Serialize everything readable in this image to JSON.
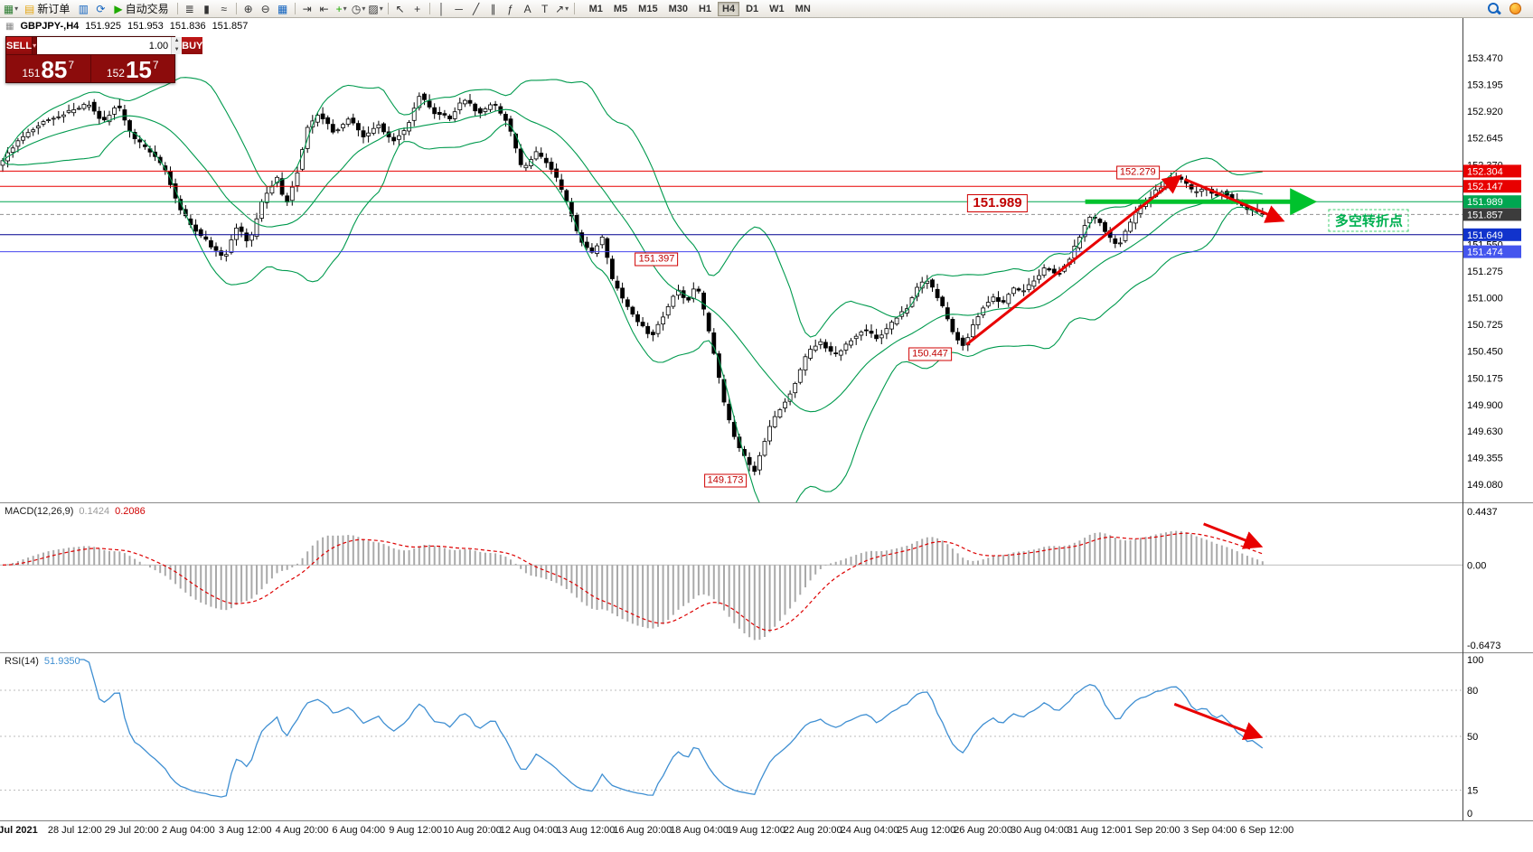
{
  "glyphs": {
    "caret": "▾",
    "spin_up": "▲",
    "spin_down": "▼",
    "chart_icon": "▦"
  },
  "toolbar": {
    "items": [
      {
        "type": "icon",
        "name": "new-chart-icon",
        "glyph": "▦",
        "color": "#2e7d32",
        "caret": true
      },
      {
        "type": "button",
        "name": "new-order-button",
        "glyph": "▤",
        "glyph_color": "#e6a817",
        "label": "新订单"
      },
      {
        "type": "icon",
        "name": "market-watch-icon",
        "glyph": "▥",
        "color": "#1565c0"
      },
      {
        "type": "icon",
        "name": "refresh-icon",
        "glyph": "⟳",
        "color": "#1565c0"
      },
      {
        "type": "button",
        "name": "autotrading-button",
        "glyph": "▶",
        "glyph_color": "#1faa00",
        "label": "自动交易"
      },
      {
        "type": "sep"
      },
      {
        "type": "icon",
        "name": "bar-chart-icon",
        "glyph": "≣",
        "color": "#333333"
      },
      {
        "type": "icon",
        "name": "candlestick-chart-icon",
        "glyph": "▮",
        "color": "#333333"
      },
      {
        "type": "icon",
        "name": "line-chart-icon",
        "glyph": "≈",
        "color": "#333333"
      },
      {
        "type": "sep"
      },
      {
        "type": "icon",
        "name": "zoom-in-icon",
        "glyph": "⊕",
        "color": "#333333"
      },
      {
        "type": "icon",
        "name": "zoom-out-icon",
        "glyph": "⊖",
        "color": "#333333"
      },
      {
        "type": "icon",
        "name": "tile-windows-icon",
        "glyph": "▦",
        "color": "#1565c0"
      },
      {
        "type": "sep"
      },
      {
        "type": "icon",
        "name": "auto-scroll-icon",
        "glyph": "⇥",
        "color": "#333333"
      },
      {
        "type": "icon",
        "name": "chart-shift-icon",
        "glyph": "⇤",
        "color": "#333333"
      },
      {
        "type": "icon",
        "name": "indicators-icon",
        "glyph": "+",
        "color": "#1faa00",
        "caret": true
      },
      {
        "type": "icon",
        "name": "periods-icon",
        "glyph": "◷",
        "color": "#333333",
        "caret": true
      },
      {
        "type": "icon",
        "name": "templates-icon",
        "glyph": "▨",
        "color": "#333333",
        "caret": true
      },
      {
        "type": "sep"
      },
      {
        "type": "icon",
        "name": "cursor-icon",
        "glyph": "↖",
        "color": "#333333"
      },
      {
        "type": "icon",
        "name": "crosshair-icon",
        "glyph": "+",
        "color": "#333333"
      },
      {
        "type": "sep"
      },
      {
        "type": "icon",
        "name": "vertical-line-icon",
        "glyph": "│",
        "color": "#333333"
      },
      {
        "type": "icon",
        "name": "horizontal-line-icon",
        "glyph": "─",
        "color": "#333333"
      },
      {
        "type": "icon",
        "name": "trendline-icon",
        "glyph": "╱",
        "color": "#333333"
      },
      {
        "type": "icon",
        "name": "channel-icon",
        "glyph": "∥",
        "color": "#333333"
      },
      {
        "type": "icon",
        "name": "fibonacci-icon",
        "glyph": "ƒ",
        "color": "#333333"
      },
      {
        "type": "icon",
        "name": "text-icon",
        "glyph": "A",
        "color": "#333333"
      },
      {
        "type": "icon",
        "name": "label-icon",
        "glyph": "T",
        "color": "#333333"
      },
      {
        "type": "icon",
        "name": "arrows-icon",
        "glyph": "↗",
        "color": "#333333",
        "caret": true
      },
      {
        "type": "sep"
      }
    ],
    "timeframes": [
      {
        "label": "M1"
      },
      {
        "label": "M5"
      },
      {
        "label": "M15"
      },
      {
        "label": "M30"
      },
      {
        "label": "H1"
      },
      {
        "label": "H4",
        "active": true
      },
      {
        "label": "D1"
      },
      {
        "label": "W1"
      },
      {
        "label": "MN"
      }
    ]
  },
  "chart": {
    "symbol_period": "GBPJPY-,H4",
    "open": "151.925",
    "high": "151.953",
    "low": "151.836",
    "close": "151.857"
  },
  "trade_panel": {
    "sell_label": "SELL",
    "buy_label": "BUY",
    "volume": "1.00",
    "bid": {
      "prefix": "151",
      "big": "85",
      "sup": "7"
    },
    "ask": {
      "prefix": "152",
      "big": "15",
      "sup": "7"
    }
  },
  "macd": {
    "title": "MACD(12,26,9)",
    "value_main": "0.1424",
    "value_signal": "0.2086"
  },
  "rsi": {
    "title": "RSI(14)",
    "value": "51.9350"
  },
  "chart_data": {
    "type": "candlestick",
    "symbol": "GBPJPY",
    "timeframe": "H4",
    "price_axis_range": [
      149.08,
      153.47
    ],
    "colors": {
      "bollinger": "#009a4e",
      "arrow_red": "#e80000",
      "thick_green": "#00c22d",
      "rsi_line": "#3f8fd2",
      "candle_up": "#ffffff",
      "candle_down": "#000000"
    },
    "render": {
      "end_frac": 0.866
    },
    "price_keypoints": [
      [
        0.0,
        152.35
      ],
      [
        0.013,
        152.6
      ],
      [
        0.03,
        152.8
      ],
      [
        0.046,
        152.9
      ],
      [
        0.063,
        153.0
      ],
      [
        0.072,
        152.8
      ],
      [
        0.082,
        153.0
      ],
      [
        0.092,
        152.65
      ],
      [
        0.105,
        152.5
      ],
      [
        0.115,
        152.3
      ],
      [
        0.125,
        151.9
      ],
      [
        0.135,
        151.7
      ],
      [
        0.145,
        151.55
      ],
      [
        0.155,
        151.4
      ],
      [
        0.164,
        151.75
      ],
      [
        0.172,
        151.55
      ],
      [
        0.181,
        152.0
      ],
      [
        0.191,
        152.25
      ],
      [
        0.197,
        151.95
      ],
      [
        0.205,
        152.3
      ],
      [
        0.212,
        152.75
      ],
      [
        0.22,
        152.9
      ],
      [
        0.23,
        152.7
      ],
      [
        0.24,
        152.85
      ],
      [
        0.25,
        152.65
      ],
      [
        0.26,
        152.8
      ],
      [
        0.27,
        152.6
      ],
      [
        0.28,
        152.75
      ],
      [
        0.289,
        153.1
      ],
      [
        0.299,
        152.9
      ],
      [
        0.309,
        152.85
      ],
      [
        0.319,
        153.05
      ],
      [
        0.329,
        152.9
      ],
      [
        0.339,
        153.0
      ],
      [
        0.349,
        152.8
      ],
      [
        0.359,
        152.3
      ],
      [
        0.368,
        152.5
      ],
      [
        0.378,
        152.35
      ],
      [
        0.388,
        152.05
      ],
      [
        0.398,
        151.6
      ],
      [
        0.407,
        151.45
      ],
      [
        0.413,
        151.65
      ],
      [
        0.42,
        151.2
      ],
      [
        0.429,
        150.95
      ],
      [
        0.438,
        150.75
      ],
      [
        0.447,
        150.6
      ],
      [
        0.457,
        150.85
      ],
      [
        0.464,
        151.1
      ],
      [
        0.471,
        150.95
      ],
      [
        0.478,
        151.15
      ],
      [
        0.484,
        150.8
      ],
      [
        0.491,
        150.35
      ],
      [
        0.497,
        149.9
      ],
      [
        0.504,
        149.55
      ],
      [
        0.511,
        149.35
      ],
      [
        0.517,
        149.2
      ],
      [
        0.524,
        149.5
      ],
      [
        0.53,
        149.75
      ],
      [
        0.537,
        149.9
      ],
      [
        0.545,
        150.1
      ],
      [
        0.554,
        150.45
      ],
      [
        0.563,
        150.55
      ],
      [
        0.572,
        150.4
      ],
      [
        0.582,
        150.55
      ],
      [
        0.592,
        150.68
      ],
      [
        0.602,
        150.58
      ],
      [
        0.612,
        150.75
      ],
      [
        0.622,
        150.9
      ],
      [
        0.628,
        151.1
      ],
      [
        0.635,
        151.2
      ],
      [
        0.641,
        151.05
      ],
      [
        0.648,
        150.85
      ],
      [
        0.654,
        150.62
      ],
      [
        0.661,
        150.5
      ],
      [
        0.668,
        150.75
      ],
      [
        0.674,
        150.9
      ],
      [
        0.681,
        151.0
      ],
      [
        0.688,
        150.95
      ],
      [
        0.694,
        151.1
      ],
      [
        0.7,
        151.05
      ],
      [
        0.709,
        151.18
      ],
      [
        0.717,
        151.32
      ],
      [
        0.724,
        151.22
      ],
      [
        0.732,
        151.38
      ],
      [
        0.739,
        151.6
      ],
      [
        0.746,
        151.85
      ],
      [
        0.753,
        151.8
      ],
      [
        0.759,
        151.65
      ],
      [
        0.766,
        151.52
      ],
      [
        0.772,
        151.7
      ],
      [
        0.779,
        151.9
      ],
      [
        0.786,
        152.0
      ],
      [
        0.792,
        152.1
      ],
      [
        0.799,
        152.18
      ],
      [
        0.805,
        152.26
      ],
      [
        0.812,
        152.18
      ],
      [
        0.818,
        152.08
      ],
      [
        0.825,
        152.14
      ],
      [
        0.832,
        152.04
      ],
      [
        0.838,
        152.1
      ],
      [
        0.845,
        152.0
      ],
      [
        0.851,
        151.94
      ],
      [
        0.858,
        151.9
      ],
      [
        0.865,
        151.86
      ]
    ],
    "horizontal_lines": [
      {
        "price": 152.304,
        "color": "#e80000",
        "style": "solid"
      },
      {
        "price": 152.147,
        "color": "#e80000",
        "style": "solid"
      },
      {
        "price": 151.989,
        "color": "#00a651",
        "style": "solid"
      },
      {
        "price": 151.857,
        "color": "#909090",
        "style": "dash"
      },
      {
        "price": 151.649,
        "color": "#000090",
        "style": "solid"
      },
      {
        "price": 151.474,
        "color": "#4444ee",
        "style": "solid"
      }
    ],
    "plain_axis_labels": [
      "153.470",
      "153.195",
      "152.920",
      "152.645",
      "152.370",
      "151.550",
      "151.275",
      "151.000",
      "150.725",
      "150.450",
      "150.175",
      "149.900",
      "149.630",
      "149.355",
      "149.080"
    ],
    "axis_badges": [
      {
        "text": "152.304",
        "price": 152.304,
        "bg": "#e80000"
      },
      {
        "text": "152.147",
        "price": 152.147,
        "bg": "#e80000"
      },
      {
        "text": "151.989",
        "price": 151.989,
        "bg": "#00a651"
      },
      {
        "text": "151.857",
        "price": 151.857,
        "bg": "#3c3c3c"
      },
      {
        "text": "151.649",
        "price": 151.649,
        "bg": "#1133cc"
      },
      {
        "text": "151.474",
        "price": 151.474,
        "bg": "#4455ee"
      }
    ],
    "annotations": {
      "price_labels": [
        {
          "text": "152.279",
          "x": 0.778,
          "price": 152.29
        },
        {
          "text": "151.989",
          "x": 0.682,
          "price": 151.97,
          "big": true
        },
        {
          "text": "151.397",
          "x": 0.449,
          "price": 151.4
        },
        {
          "text": "150.447",
          "x": 0.636,
          "price": 150.42
        },
        {
          "text": "149.173",
          "x": 0.496,
          "price": 149.12
        }
      ],
      "cn_note": {
        "text": "多空转折点",
        "x": 0.936,
        "price": 151.8
      },
      "trend_arrows": [
        {
          "x1": 0.661,
          "p1": 150.52,
          "x2": 0.806,
          "p2": 152.24
        },
        {
          "x1": 0.81,
          "p1": 152.22,
          "x2": 0.876,
          "p2": 151.8
        }
      ],
      "thick_level_line": {
        "price": 151.989,
        "x1": 0.742,
        "x2": 0.896
      }
    },
    "macd": {
      "axis": [
        "0.4437",
        "0.00",
        "-0.6473"
      ],
      "arrow": {
        "x1": 0.823,
        "v1": 0.34,
        "x2": 0.861,
        "v2": 0.16
      }
    },
    "rsi": {
      "levels": [
        80,
        50,
        15
      ],
      "axis": [
        "100",
        "80",
        "50",
        "15",
        "0"
      ],
      "arrow": {
        "x1": 0.803,
        "v1": 71,
        "x2": 0.861,
        "v2": 50
      }
    },
    "time_labels": [
      "Jul 2021",
      "28 Jul 12:00",
      "29 Jul 20:00",
      "2 Aug 04:00",
      "3 Aug 12:00",
      "4 Aug 20:00",
      "6 Aug 04:00",
      "9 Aug 12:00",
      "10 Aug 20:00",
      "12 Aug 04:00",
      "13 Aug 12:00",
      "16 Aug 20:00",
      "18 Aug 04:00",
      "19 Aug 12:00",
      "22 Aug 20:00",
      "24 Aug 04:00",
      "25 Aug 12:00",
      "26 Aug 20:00",
      "30 Aug 04:00",
      "31 Aug 12:00",
      "1 Sep 20:00",
      "3 Sep 04:00",
      "6 Sep 12:00"
    ]
  }
}
